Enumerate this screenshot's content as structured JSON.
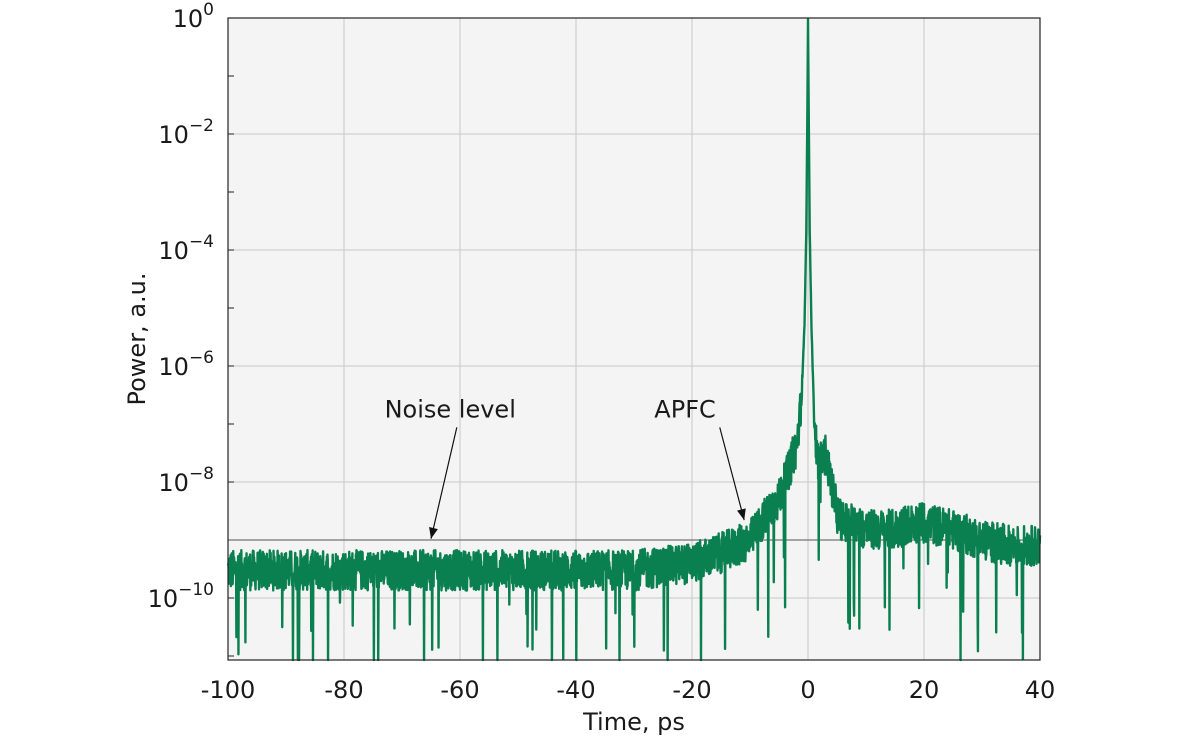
{
  "chart_data": {
    "type": "line",
    "title": "",
    "xlabel": "Time, ps",
    "ylabel": "Power, a.u.",
    "xlim": [
      -100,
      40
    ],
    "ylim": [
      1e-11,
      1
    ],
    "y_scale": "log",
    "grid": true,
    "x_ticks": [
      -100,
      -80,
      -60,
      -40,
      -20,
      0,
      20,
      40
    ],
    "x_tick_labels": [
      "-100",
      "-80",
      "-60",
      "-40",
      "-20",
      "0",
      "20",
      "40"
    ],
    "y_ticks": [
      {
        "value": 1,
        "base": "10",
        "exp": "0"
      },
      {
        "value": 0.01,
        "base": "10",
        "exp": "−2"
      },
      {
        "value": 0.0001,
        "base": "10",
        "exp": "−4"
      },
      {
        "value": 1e-06,
        "base": "10",
        "exp": "−6"
      },
      {
        "value": 1e-08,
        "base": "10",
        "exp": "−8"
      },
      {
        "value": 1e-10,
        "base": "10",
        "exp": "−10"
      }
    ],
    "noise_level": 1e-09,
    "series": [
      {
        "color": "#0a8050",
        "x": [
          -100,
          -90,
          -80,
          -70,
          -60,
          -50,
          -40,
          -30,
          -20,
          -15,
          -12,
          -10,
          -8,
          -6,
          -5,
          -4,
          -3,
          -2.5,
          -2,
          -1.5,
          -1,
          -0.6,
          -0.3,
          -0.1,
          0,
          0.1,
          0.3,
          0.6,
          1,
          1.5,
          2,
          3,
          4,
          5,
          6,
          8,
          10,
          12,
          15,
          18,
          20,
          25,
          30,
          35,
          40
        ],
        "y": [
          3e-10,
          3e-10,
          3e-10,
          3e-10,
          3e-10,
          3e-10,
          3e-10,
          3e-10,
          4e-10,
          6e-10,
          8e-10,
          1e-09,
          2e-09,
          4e-09,
          5e-09,
          1e-08,
          2e-08,
          3e-08,
          4e-08,
          1e-07,
          5e-07,
          5e-06,
          0.0002,
          0.03,
          1,
          0.05,
          0.0002,
          5e-06,
          2e-07,
          3e-08,
          2e-08,
          3e-08,
          1e-08,
          3e-09,
          2e-09,
          2e-09,
          1.5e-09,
          1.5e-09,
          1.5e-09,
          2e-09,
          2e-09,
          1.5e-09,
          1e-09,
          8e-10,
          8e-10
        ]
      }
    ],
    "annotations": [
      {
        "text": "Noise level",
        "x": -73,
        "y": 1.3e-07,
        "arrow_to": [
          -65,
          1.05e-09
        ]
      },
      {
        "text": "APFC",
        "x": -26.5,
        "y": 1.3e-07,
        "arrow_to": [
          -11,
          2.2e-09
        ]
      }
    ]
  }
}
